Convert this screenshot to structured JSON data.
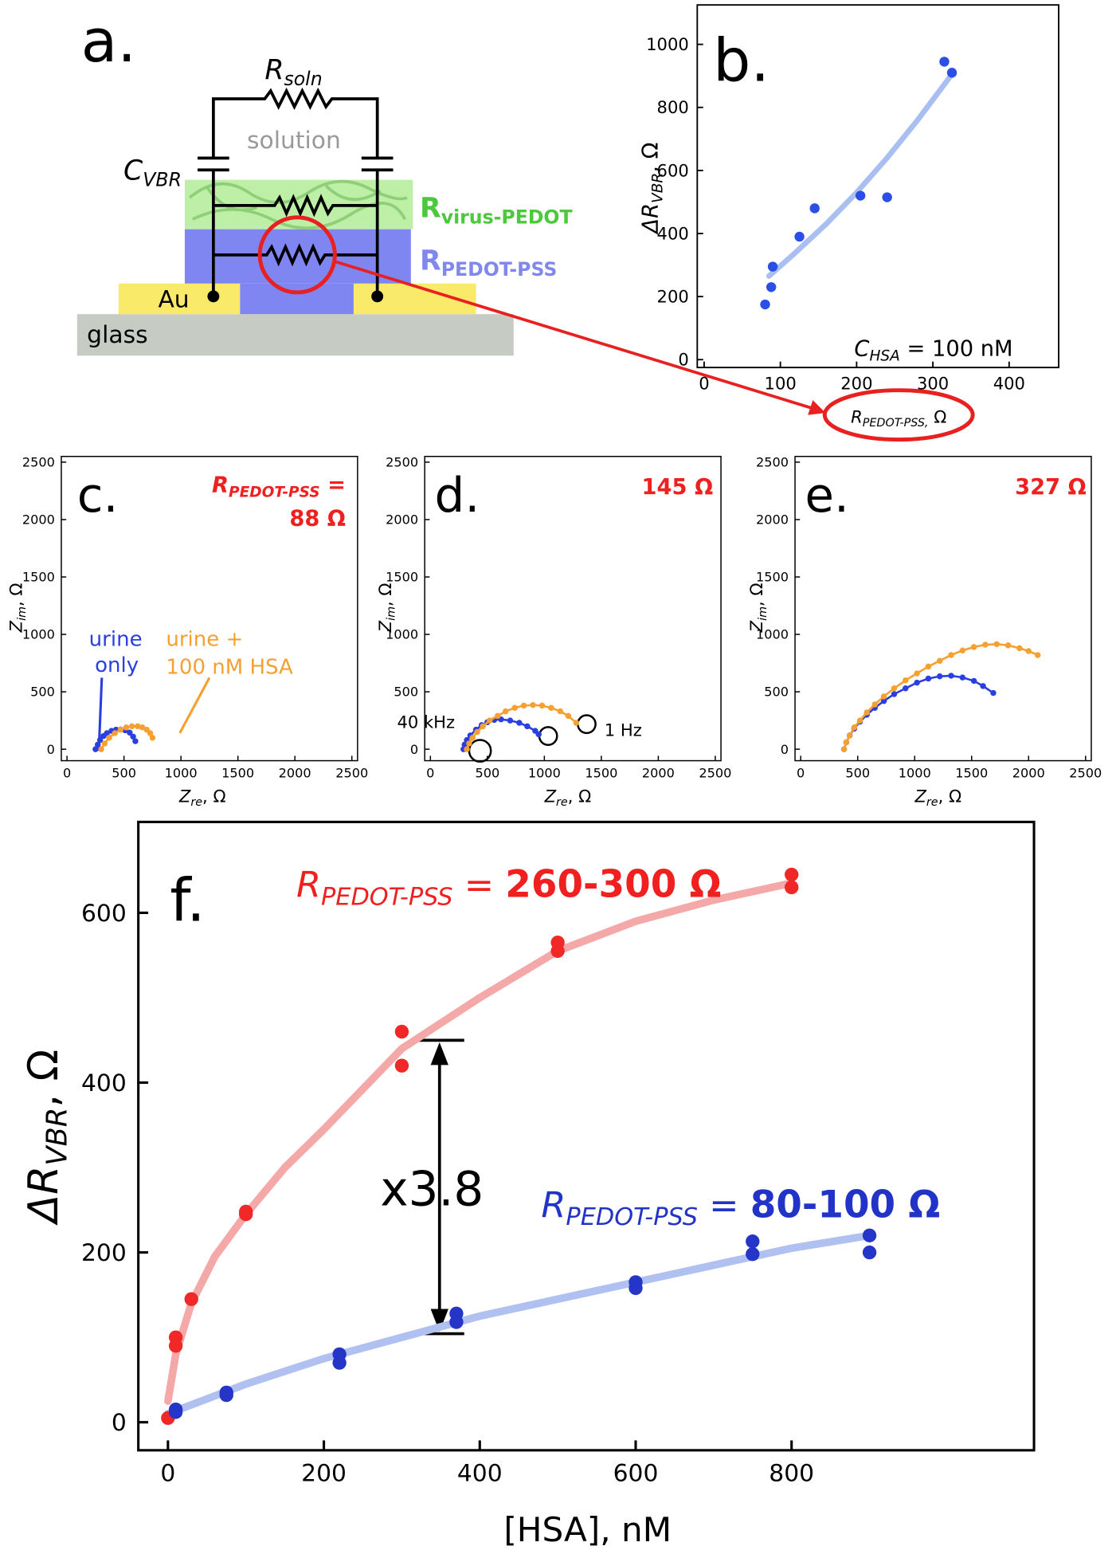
{
  "panel_a": {
    "letter": "a.",
    "r_soln": {
      "base": "R",
      "sub": "soln"
    },
    "solution": "solution",
    "c_vbr": {
      "base": "C",
      "sub": "VBR"
    },
    "r_virus": {
      "base": "R",
      "sub": "virus-PEDOT"
    },
    "r_pedot": {
      "base": "R",
      "sub": "PEDOT-PSS"
    },
    "au": "Au",
    "glass": "glass"
  },
  "chart_data": [
    {
      "type": "scatter",
      "letter": "b.",
      "ylabel": {
        "base": "ΔR",
        "sub": "VBR",
        "tail": ", Ω"
      },
      "xlabel": {
        "base": "R",
        "sub": "PEDOT-PSS,",
        "tail": " Ω"
      },
      "annotations": [
        {
          "base": "C",
          "sub": "HSA",
          "tail": " = 100 nM"
        }
      ],
      "xlim": [
        -9,
        465
      ],
      "ylim": [
        -25,
        1125
      ],
      "xticks": [
        0,
        100,
        200,
        300,
        400
      ],
      "yticks": [
        0,
        200,
        400,
        600,
        800,
        1000
      ],
      "series": [
        {
          "mode": "lines",
          "color": "#a9bff2",
          "x": [
            85,
            120,
            160,
            200,
            240,
            280,
            325
          ],
          "values": [
            265,
            340,
            430,
            530,
            640,
            760,
            905
          ]
        },
        {
          "mode": "markers",
          "color": "#2b4ee6",
          "x": [
            80,
            88,
            90,
            125,
            145,
            205,
            240,
            315,
            325
          ],
          "values": [
            175,
            230,
            295,
            390,
            480,
            520,
            515,
            945,
            910
          ]
        }
      ]
    },
    {
      "type": "scatter",
      "letter": "c.",
      "ylabel": {
        "base": "Z",
        "sub": "im",
        "tail": ", Ω"
      },
      "xlabel": {
        "base": "Z",
        "sub": "re",
        "tail": ", Ω"
      },
      "annotations": [
        {
          "base": "R",
          "sub": "PEDOT-PSS",
          "tail": " ="
        },
        "88 Ω",
        "urine",
        "only",
        "urine +",
        "100 nM HSA"
      ],
      "xlim": [
        -50,
        2550
      ],
      "ylim": [
        -100,
        2550
      ],
      "xticks": [
        0,
        500,
        1000,
        1500,
        2000,
        2500
      ],
      "yticks": [
        0,
        500,
        1000,
        1500,
        2000,
        2500
      ],
      "series": [
        {
          "mode": "lines+markers",
          "color": "#2a3fe0",
          "x": [
            250,
            270,
            290,
            320,
            350,
            390,
            430,
            470,
            510,
            550,
            580,
            600
          ],
          "values": [
            0,
            40,
            80,
            115,
            140,
            160,
            170,
            172,
            165,
            145,
            110,
            70
          ]
        },
        {
          "mode": "lines+markers",
          "color": "#f5a030",
          "x": [
            300,
            330,
            370,
            420,
            470,
            520,
            570,
            620,
            660,
            700,
            730,
            750
          ],
          "values": [
            0,
            50,
            100,
            140,
            170,
            190,
            200,
            200,
            190,
            170,
            140,
            100
          ]
        }
      ]
    },
    {
      "type": "scatter",
      "letter": "d.",
      "ylabel": {
        "base": "Z",
        "sub": "im",
        "tail": ", Ω"
      },
      "xlabel": {
        "base": "Z",
        "sub": "re",
        "tail": ", Ω"
      },
      "annotations": [
        "145 Ω",
        "40 kHz",
        "1 Hz"
      ],
      "xlim": [
        -50,
        2550
      ],
      "ylim": [
        -100,
        2550
      ],
      "xticks": [
        0,
        500,
        1000,
        1500,
        2000,
        2500
      ],
      "yticks": [
        0,
        500,
        1000,
        1500,
        2000,
        2500
      ],
      "series": [
        {
          "mode": "lines+markers",
          "color": "#2a3fe0",
          "x": [
            290,
            300,
            320,
            350,
            400,
            450,
            500,
            560,
            620,
            700,
            780,
            850,
            920,
            950
          ],
          "values": [
            0,
            40,
            80,
            120,
            170,
            210,
            235,
            255,
            260,
            250,
            230,
            200,
            160,
            130
          ]
        },
        {
          "mode": "lines+markers",
          "color": "#f5a030",
          "x": [
            320,
            340,
            370,
            410,
            460,
            520,
            590,
            660,
            740,
            820,
            900,
            980,
            1060,
            1140,
            1210,
            1280
          ],
          "values": [
            0,
            50,
            100,
            150,
            200,
            250,
            290,
            330,
            360,
            380,
            385,
            380,
            360,
            330,
            290,
            230
          ]
        }
      ]
    },
    {
      "type": "scatter",
      "letter": "e.",
      "ylabel": {
        "base": "Z",
        "sub": "im",
        "tail": ", Ω"
      },
      "xlabel": {
        "base": "Z",
        "sub": "re",
        "tail": ", Ω"
      },
      "annotations": [
        "327 Ω"
      ],
      "xlim": [
        -50,
        2550
      ],
      "ylim": [
        -100,
        2550
      ],
      "xticks": [
        0,
        500,
        1000,
        1500,
        2000,
        2500
      ],
      "yticks": [
        0,
        500,
        1000,
        1500,
        2000,
        2500
      ],
      "series": [
        {
          "mode": "lines+markers",
          "color": "#2a3fe0",
          "x": [
            380,
            400,
            430,
            470,
            520,
            580,
            650,
            730,
            820,
            920,
            1020,
            1120,
            1220,
            1320,
            1420,
            1520,
            1600,
            1690
          ],
          "values": [
            0,
            60,
            120,
            180,
            240,
            300,
            360,
            420,
            480,
            530,
            580,
            615,
            635,
            640,
            625,
            595,
            550,
            490
          ]
        },
        {
          "mode": "lines+markers",
          "color": "#f5a030",
          "x": [
            380,
            400,
            430,
            470,
            520,
            580,
            650,
            730,
            820,
            920,
            1020,
            1120,
            1220,
            1320,
            1420,
            1520,
            1620,
            1720,
            1820,
            1920,
            2000,
            2080
          ],
          "values": [
            0,
            60,
            120,
            190,
            250,
            320,
            390,
            460,
            530,
            600,
            660,
            720,
            770,
            820,
            860,
            890,
            910,
            915,
            905,
            880,
            855,
            820
          ]
        }
      ]
    },
    {
      "type": "scatter",
      "letter": "f.",
      "ylabel": {
        "base": "ΔR",
        "sub": "VBR",
        "tail": ", Ω"
      },
      "xlabel": "[HSA], nM",
      "annotations": [
        {
          "base": "R",
          "sub": "PEDOT-PSS",
          "tail": " = ",
          "bold": "260-300 Ω"
        },
        {
          "base": "R",
          "sub": "PEDOT-PSS",
          "tail": " = ",
          "bold": "80-100 Ω"
        },
        "x3.8"
      ],
      "xlim": [
        -38,
        1111
      ],
      "ylim": [
        -33,
        707
      ],
      "xticks": [
        0,
        200,
        400,
        600,
        800
      ],
      "yticks": [
        0,
        200,
        400,
        600
      ],
      "series": [
        {
          "mode": "lines",
          "color": "#f5a8a8",
          "x": [
            0,
            10,
            30,
            60,
            100,
            150,
            200,
            300,
            400,
            500,
            600,
            700,
            800
          ],
          "values": [
            25,
            80,
            140,
            195,
            245,
            300,
            345,
            440,
            500,
            555,
            590,
            615,
            635
          ]
        },
        {
          "mode": "lines",
          "color": "#b0c0f0",
          "x": [
            0,
            100,
            200,
            300,
            400,
            500,
            600,
            700,
            800,
            900
          ],
          "values": [
            10,
            45,
            75,
            100,
            125,
            145,
            165,
            185,
            205,
            220
          ]
        },
        {
          "mode": "markers",
          "color": "#f02828",
          "x": [
            0,
            10,
            10,
            30,
            100,
            100,
            300,
            300,
            500,
            500,
            800,
            800
          ],
          "values": [
            5,
            90,
            100,
            145,
            245,
            248,
            460,
            420,
            555,
            565,
            645,
            630
          ]
        },
        {
          "mode": "markers",
          "color": "#2535c8",
          "x": [
            10,
            10,
            75,
            75,
            220,
            220,
            370,
            370,
            600,
            600,
            750,
            750,
            900,
            900
          ],
          "values": [
            15,
            12,
            35,
            32,
            80,
            70,
            128,
            118,
            165,
            158,
            213,
            198,
            220,
            200
          ]
        }
      ]
    }
  ]
}
